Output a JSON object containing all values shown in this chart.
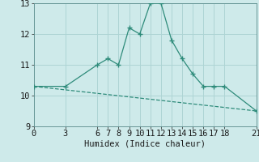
{
  "xlabel": "Humidex (Indice chaleur)",
  "line1_x": [
    0,
    3,
    6,
    7,
    8,
    9,
    10,
    11,
    12,
    13,
    14,
    15,
    16,
    17,
    18,
    21
  ],
  "line1_y": [
    10.3,
    10.3,
    11.0,
    11.2,
    11.0,
    12.2,
    12.0,
    13.0,
    13.0,
    11.8,
    11.2,
    10.7,
    10.3,
    10.3,
    10.3,
    9.5
  ],
  "line2_x": [
    0,
    21
  ],
  "line2_y": [
    10.3,
    9.5
  ],
  "line_color": "#2e8b7a",
  "bg_color": "#ceeaea",
  "grid_color": "#add4d4",
  "xlim": [
    0,
    21
  ],
  "ylim": [
    9,
    13
  ],
  "xticks": [
    0,
    3,
    6,
    7,
    8,
    9,
    10,
    11,
    12,
    13,
    14,
    15,
    16,
    17,
    18,
    21
  ],
  "yticks": [
    9,
    10,
    11,
    12,
    13
  ],
  "tick_fontsize": 7.5,
  "xlabel_fontsize": 7.5
}
